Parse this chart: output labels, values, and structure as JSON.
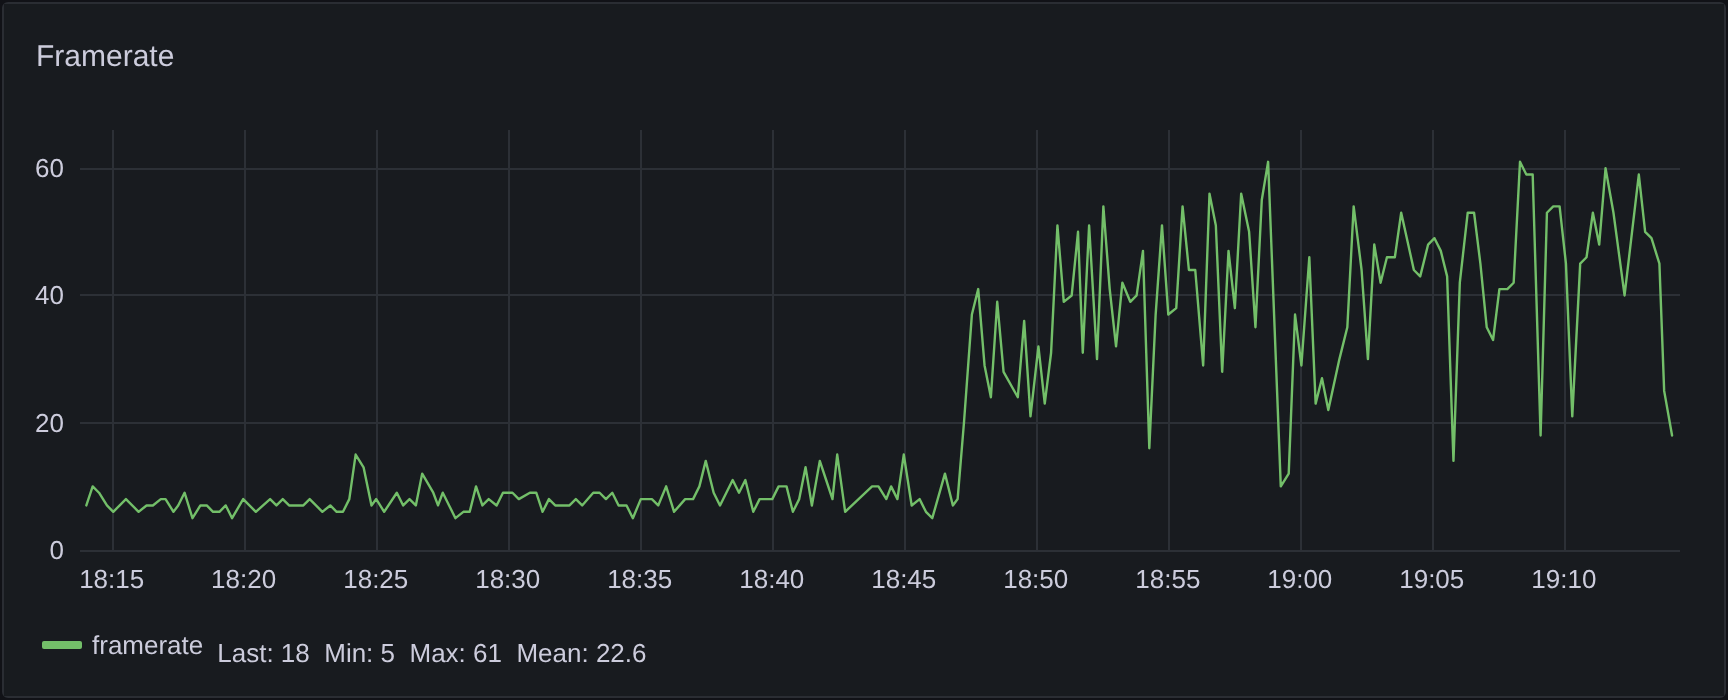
{
  "chart_data": {
    "type": "line",
    "title": "Framerate",
    "x": [
      18.234,
      18.238,
      18.242,
      18.247,
      18.251,
      18.259,
      18.267,
      18.272,
      18.276,
      18.281,
      18.284,
      18.289,
      18.292,
      18.296,
      18.301,
      18.306,
      18.31,
      18.314,
      18.318,
      18.322,
      18.326,
      18.333,
      18.341,
      18.35,
      18.354,
      18.358,
      18.362,
      18.371,
      18.375,
      18.383,
      18.388,
      18.392,
      18.396,
      18.4,
      18.404,
      18.409,
      18.414,
      18.417,
      18.422,
      18.43,
      18.434,
      18.438,
      18.442,
      18.446,
      18.453,
      18.456,
      18.459,
      18.463,
      18.467,
      18.472,
      18.476,
      18.48,
      18.484,
      18.488,
      18.493,
      18.497,
      18.503,
      18.507,
      18.514,
      18.518,
      18.522,
      18.526,
      18.53,
      18.539,
      18.543,
      18.547,
      18.554,
      18.558,
      18.562,
      18.566,
      18.57,
      18.575,
      18.579,
      18.584,
      18.591,
      18.595,
      18.6,
      18.605,
      18.612,
      18.617,
      18.621,
      18.625,
      18.63,
      18.634,
      18.642,
      18.646,
      18.65,
      18.655,
      18.659,
      18.667,
      18.671,
      18.676,
      18.68,
      18.684,
      18.688,
      18.692,
      18.697,
      18.701,
      18.705,
      18.708,
      18.713,
      18.73,
      18.734,
      18.739,
      18.742,
      18.746,
      18.75,
      18.755,
      18.76,
      18.764,
      18.768,
      18.776,
      18.781,
      18.784,
      18.788,
      18.793,
      18.797,
      18.801,
      18.805,
      18.809,
      18.813,
      18.822,
      18.826,
      18.83,
      18.835,
      18.839,
      18.843,
      18.847,
      18.851,
      18.856,
      18.86,
      18.863,
      18.867,
      18.872,
      18.876,
      18.88,
      18.884,
      18.888,
      18.893,
      18.897,
      18.901,
      18.905,
      18.909,
      18.913,
      18.917,
      18.922,
      18.926,
      18.93,
      18.934,
      18.939,
      18.943,
      18.947,
      18.951,
      18.955,
      18.959,
      18.963,
      18.968,
      18.972,
      18.976,
      18.98,
      18.988,
      18.993,
      18.997,
      19.001,
      19.006,
      19.01,
      19.014,
      19.018,
      19.025,
      19.03,
      19.034,
      19.039,
      19.043,
      19.047,
      19.051,
      19.055,
      19.06,
      19.064,
      19.072,
      19.076,
      19.081,
      19.085,
      19.089,
      19.093,
      19.097,
      19.101,
      19.106,
      19.11,
      19.114,
      19.118,
      19.122,
      19.126,
      19.131,
      19.135,
      19.139,
      19.143,
      19.147,
      19.152,
      19.156,
      19.16,
      19.164,
      19.168,
      19.172,
      19.177,
      19.181,
      19.185,
      19.189,
      19.193,
      19.198,
      19.205,
      19.214,
      19.218,
      19.222,
      19.227,
      19.23,
      19.235
    ],
    "series": [
      {
        "name": "framerate",
        "color": "#73bf69",
        "values": [
          7,
          10,
          9,
          7,
          6,
          8,
          6,
          7,
          7,
          8,
          8,
          6,
          7,
          9,
          5,
          7,
          7,
          6,
          6,
          7,
          5,
          8,
          6,
          8,
          7,
          8,
          7,
          7,
          8,
          6,
          7,
          6,
          6,
          8,
          15,
          13,
          7,
          8,
          6,
          9,
          7,
          8,
          7,
          12,
          9,
          7,
          9,
          7,
          5,
          6,
          6,
          10,
          7,
          8,
          7,
          9,
          9,
          8,
          9,
          9,
          6,
          8,
          7,
          7,
          8,
          7,
          9,
          9,
          8,
          9,
          7,
          7,
          5,
          8,
          8,
          7,
          10,
          6,
          8,
          8,
          10,
          14,
          9,
          7,
          11,
          9,
          11,
          6,
          8,
          8,
          10,
          10,
          6,
          8,
          13,
          7,
          14,
          11,
          8,
          15,
          6,
          10,
          10,
          8,
          10,
          8,
          15,
          7,
          8,
          6,
          5,
          12,
          7,
          8,
          20,
          37,
          41,
          29,
          24,
          39,
          28,
          24,
          36,
          21,
          32,
          23,
          31,
          51,
          39,
          40,
          50,
          31,
          51,
          30,
          54,
          41,
          32,
          42,
          39,
          40,
          47,
          16,
          37,
          51,
          37,
          38,
          54,
          44,
          44,
          29,
          56,
          51,
          28,
          47,
          38,
          56,
          50,
          35,
          55,
          61,
          10,
          12,
          37,
          29,
          46,
          23,
          27,
          22,
          30,
          35,
          54,
          44,
          30,
          48,
          42,
          46,
          46,
          53,
          44,
          43,
          48,
          49,
          47,
          43,
          14,
          42,
          53,
          53,
          45,
          35,
          33,
          41,
          41,
          42,
          61,
          59,
          59,
          18,
          53,
          54,
          54,
          45,
          21,
          45,
          46,
          53,
          48,
          60,
          53,
          40,
          59,
          50,
          49,
          45,
          25,
          18
        ]
      }
    ],
    "xlim": [
      18.23,
      19.24
    ],
    "xticks": [
      {
        "value": 18.25,
        "label": "18:15"
      },
      {
        "value": 18.3333,
        "label": "18:20"
      },
      {
        "value": 18.4167,
        "label": "18:25"
      },
      {
        "value": 18.5,
        "label": "18:30"
      },
      {
        "value": 18.5833,
        "label": "18:35"
      },
      {
        "value": 18.6667,
        "label": "18:40"
      },
      {
        "value": 18.75,
        "label": "18:45"
      },
      {
        "value": 18.8333,
        "label": "18:50"
      },
      {
        "value": 18.9167,
        "label": "18:55"
      },
      {
        "value": 19,
        "label": "19:00"
      },
      {
        "value": 19.0833,
        "label": "19:05"
      },
      {
        "value": 19.1667,
        "label": "19:10"
      }
    ],
    "ylim": [
      0,
      66
    ],
    "yticks": [
      0,
      20,
      40,
      60
    ],
    "grid": true,
    "legend": "bottom left",
    "marker": "none",
    "line_style": "solid",
    "annotations": [
      "Last: 18  Min: 5  Max: 61  Mean: 22.6"
    ]
  }
}
